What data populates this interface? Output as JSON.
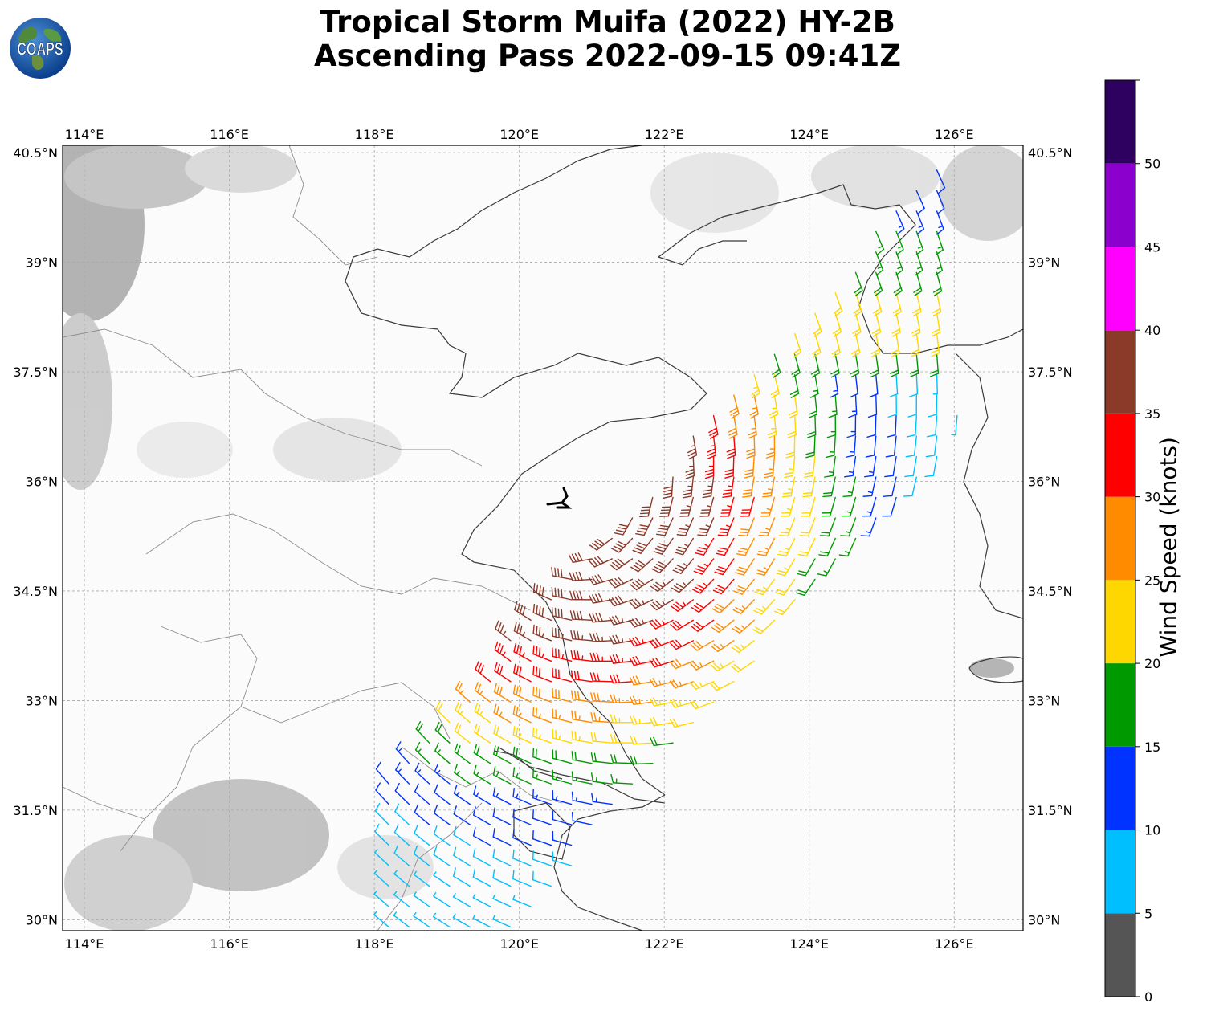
{
  "title": {
    "line1": "Tropical Storm Muifa (2022) HY-2B",
    "line2": "Ascending Pass 2022-09-15 09:41Z"
  },
  "logo": {
    "text": "COAPS",
    "icon": "globe-logo-icon"
  },
  "map": {
    "lon_range": [
      113.7,
      126.95
    ],
    "lat_range": [
      29.85,
      40.6
    ],
    "lon_ticks": [
      114,
      116,
      118,
      120,
      122,
      124,
      126
    ],
    "lat_ticks": [
      30,
      31.5,
      33,
      34.5,
      36,
      37.5,
      39,
      40.5
    ],
    "lon_tick_labels": [
      "114°E",
      "116°E",
      "118°E",
      "120°E",
      "122°E",
      "124°E",
      "126°E"
    ],
    "lat_tick_labels": [
      "30°N",
      "31.5°N",
      "33°N",
      "34.5°N",
      "36°N",
      "37.5°N",
      "39°N",
      "40.5°N"
    ],
    "gridlines": true,
    "background": "grayscale terrain"
  },
  "colorbar": {
    "label": "Wind Speed (knots)",
    "ticks": [
      "0",
      "5",
      "10",
      "15",
      "20",
      "25",
      "30",
      "35",
      "40",
      "45",
      "50"
    ],
    "bins": [
      {
        "range": [
          0,
          5
        ],
        "color": "#555555"
      },
      {
        "range": [
          5,
          10
        ],
        "color": "#00bfff"
      },
      {
        "range": [
          10,
          15
        ],
        "color": "#0033ff"
      },
      {
        "range": [
          15,
          20
        ],
        "color": "#009900"
      },
      {
        "range": [
          20,
          25
        ],
        "color": "#ffd700"
      },
      {
        "range": [
          25,
          30
        ],
        "color": "#ff8c00"
      },
      {
        "range": [
          30,
          35
        ],
        "color": "#ff0000"
      },
      {
        "range": [
          35,
          40
        ],
        "color": "#8b3a2a"
      },
      {
        "range": [
          40,
          45
        ],
        "color": "#ff00ff"
      },
      {
        "range": [
          45,
          50
        ],
        "color": "#8b00cc"
      },
      {
        "range": [
          50,
          55
        ],
        "color": "#2e0060"
      }
    ]
  },
  "storm_center": {
    "lon": 120.6,
    "lat": 35.7,
    "symbol": "tropical-storm-icon"
  }
}
